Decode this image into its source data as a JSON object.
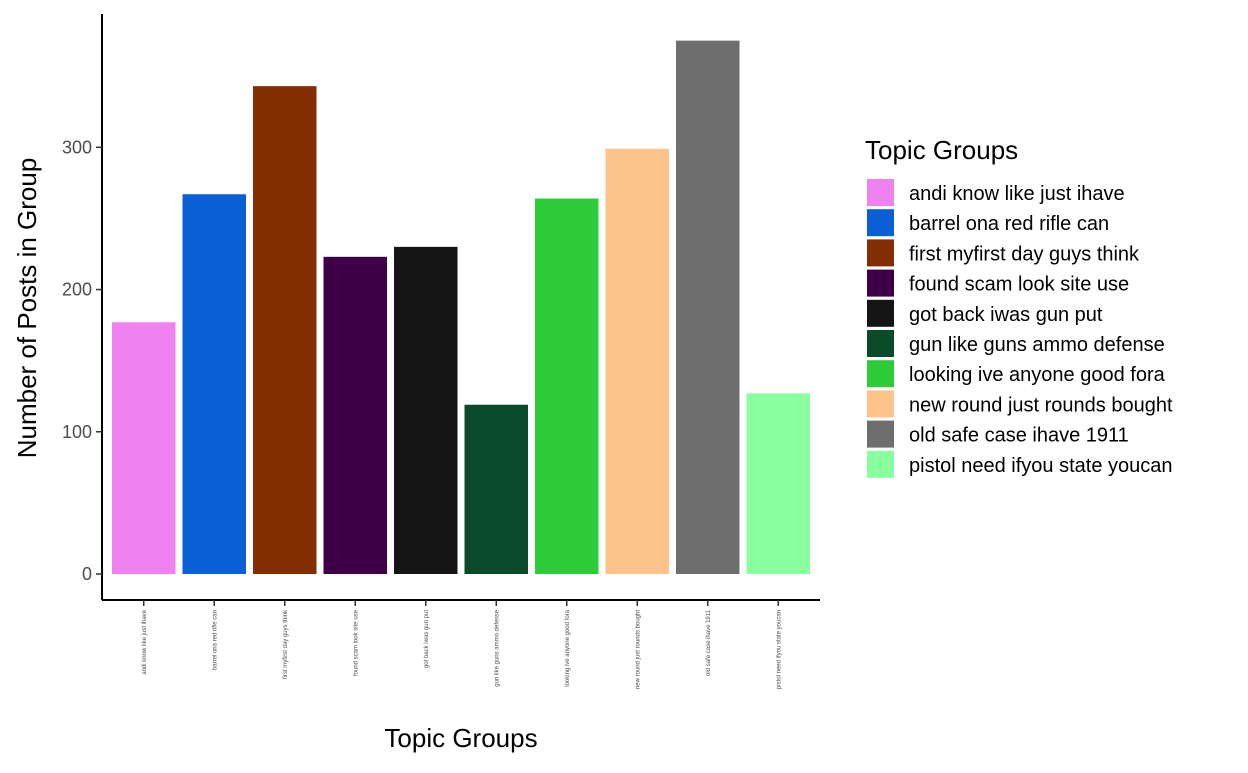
{
  "chart_data": {
    "type": "bar",
    "title": "",
    "xlabel": "Topic Groups",
    "ylabel": "Number of Posts in Group",
    "ylim": [
      0,
      392
    ],
    "y_ticks": [
      0,
      100,
      200,
      300
    ],
    "categories": [
      "andi know like just ihave",
      "barrel ona red rifle can",
      "first myfirst day guys think",
      "found scam look site use",
      "got back iwas gun put",
      "gun like guns ammo defense",
      "looking ive anyone good fora",
      "new round just rounds bought",
      "old safe case ihave 1911",
      "pistol need ifyou state youcan"
    ],
    "values": [
      177,
      267,
      343,
      223,
      230,
      119,
      264,
      299,
      375,
      127
    ],
    "colors": [
      "#EE82EE",
      "#0B5FD6",
      "#842E04",
      "#3D0047",
      "#141414",
      "#0B4B2A",
      "#2ECC39",
      "#FEC38B",
      "#6E6E6E",
      "#89FFA0"
    ],
    "legend": {
      "title": "Topic Groups",
      "position": "right"
    },
    "grid": false
  }
}
